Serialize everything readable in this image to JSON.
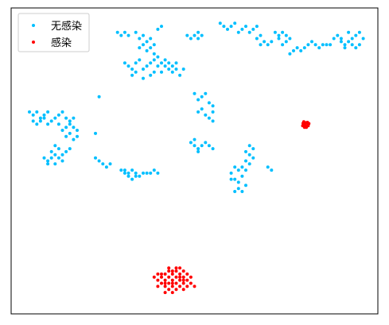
{
  "chart_data": {
    "type": "scatter",
    "title": "",
    "xlabel": "",
    "ylabel": "",
    "xlim": [
      0,
      100
    ],
    "ylim": [
      0,
      100
    ],
    "grid": false,
    "legend": "top-left",
    "series": [
      {
        "name": "无感染",
        "color": "#00bfff",
        "points": [
          [
            29,
            92
          ],
          [
            30,
            91
          ],
          [
            31,
            92
          ],
          [
            32,
            91
          ],
          [
            34,
            92
          ],
          [
            35,
            90
          ],
          [
            36,
            91
          ],
          [
            37,
            89
          ],
          [
            38,
            90
          ],
          [
            39,
            88
          ],
          [
            36,
            88
          ],
          [
            37,
            86
          ],
          [
            38,
            87
          ],
          [
            35,
            87
          ],
          [
            40,
            93
          ],
          [
            41,
            94
          ],
          [
            39,
            85
          ],
          [
            31,
            82
          ],
          [
            32,
            81
          ],
          [
            33,
            80
          ],
          [
            34,
            82
          ],
          [
            35,
            83
          ],
          [
            36,
            80
          ],
          [
            37,
            81
          ],
          [
            38,
            82
          ],
          [
            39,
            83
          ],
          [
            40,
            81
          ],
          [
            41,
            82
          ],
          [
            42,
            81
          ],
          [
            43,
            80
          ],
          [
            44,
            81
          ],
          [
            45,
            80
          ],
          [
            46,
            78
          ],
          [
            44,
            79
          ],
          [
            42,
            83
          ],
          [
            40,
            84
          ],
          [
            34,
            79
          ],
          [
            33,
            78
          ],
          [
            36,
            77
          ],
          [
            38,
            78
          ],
          [
            41,
            79
          ],
          [
            43,
            82
          ],
          [
            45,
            82
          ],
          [
            47,
            80
          ],
          [
            39,
            79
          ],
          [
            48,
            91
          ],
          [
            49,
            90
          ],
          [
            50,
            91
          ],
          [
            51,
            92
          ],
          [
            52,
            91
          ],
          [
            51,
            90
          ],
          [
            57,
            95
          ],
          [
            58,
            94
          ],
          [
            59,
            93
          ],
          [
            60,
            94
          ],
          [
            61,
            95
          ],
          [
            62,
            92
          ],
          [
            63,
            93
          ],
          [
            64,
            94
          ],
          [
            65,
            92
          ],
          [
            66,
            93
          ],
          [
            67,
            94
          ],
          [
            68,
            91
          ],
          [
            69,
            89
          ],
          [
            70,
            88
          ],
          [
            71,
            89
          ],
          [
            68,
            88
          ],
          [
            67,
            90
          ],
          [
            72,
            92
          ],
          [
            73,
            91
          ],
          [
            74,
            92
          ],
          [
            75,
            91
          ],
          [
            75,
            89
          ],
          [
            74,
            88
          ],
          [
            73,
            90
          ],
          [
            76,
            90
          ],
          [
            76,
            85
          ],
          [
            77,
            86
          ],
          [
            78,
            87
          ],
          [
            79,
            86
          ],
          [
            80,
            87
          ],
          [
            81,
            88
          ],
          [
            82,
            89
          ],
          [
            83,
            88
          ],
          [
            84,
            87
          ],
          [
            85,
            88
          ],
          [
            86,
            88
          ],
          [
            87,
            88
          ],
          [
            88,
            90
          ],
          [
            89,
            91
          ],
          [
            90,
            89
          ],
          [
            91,
            88
          ],
          [
            92,
            89
          ],
          [
            93,
            90
          ],
          [
            94,
            91
          ],
          [
            95,
            92
          ],
          [
            96,
            90
          ],
          [
            95,
            88
          ],
          [
            94,
            87
          ],
          [
            93,
            88
          ],
          [
            91,
            87
          ],
          [
            90,
            90
          ],
          [
            92,
            92
          ],
          [
            5,
            66
          ],
          [
            6,
            65
          ],
          [
            7,
            66
          ],
          [
            8,
            64
          ],
          [
            9,
            65
          ],
          [
            10,
            66
          ],
          [
            6,
            63
          ],
          [
            7,
            62
          ],
          [
            8,
            63
          ],
          [
            9,
            64
          ],
          [
            10,
            62
          ],
          [
            11,
            63
          ],
          [
            12,
            64
          ],
          [
            13,
            65
          ],
          [
            14,
            66
          ],
          [
            15,
            64
          ],
          [
            14,
            60
          ],
          [
            15,
            61
          ],
          [
            16,
            62
          ],
          [
            17,
            61
          ],
          [
            18,
            60
          ],
          [
            16,
            59
          ],
          [
            15,
            58
          ],
          [
            17,
            57
          ],
          [
            18,
            58
          ],
          [
            16,
            63
          ],
          [
            17,
            64
          ],
          [
            13,
            62
          ],
          [
            9,
            51
          ],
          [
            10,
            50
          ],
          [
            11,
            51
          ],
          [
            12,
            52
          ],
          [
            13,
            51
          ],
          [
            14,
            52
          ],
          [
            15,
            53
          ],
          [
            10,
            49
          ],
          [
            12,
            49
          ],
          [
            14,
            50
          ],
          [
            13,
            54
          ],
          [
            12,
            55
          ],
          [
            16,
            54
          ],
          [
            11,
            53
          ],
          [
            24,
            71
          ],
          [
            23,
            59
          ],
          [
            51,
            70
          ],
          [
            52,
            71
          ],
          [
            53,
            72
          ],
          [
            54,
            69
          ],
          [
            55,
            68
          ],
          [
            55,
            66
          ],
          [
            54,
            64
          ],
          [
            55,
            63
          ],
          [
            53,
            65
          ],
          [
            52,
            67
          ],
          [
            50,
            72
          ],
          [
            51,
            66
          ],
          [
            49,
            56
          ],
          [
            50,
            55
          ],
          [
            51,
            54
          ],
          [
            52,
            55
          ],
          [
            53,
            56
          ],
          [
            50,
            57
          ],
          [
            51,
            53
          ],
          [
            54,
            55
          ],
          [
            55,
            54
          ],
          [
            23,
            51
          ],
          [
            24,
            50
          ],
          [
            25,
            49
          ],
          [
            26,
            48
          ],
          [
            27,
            49
          ],
          [
            30,
            47
          ],
          [
            31,
            46
          ],
          [
            32,
            46
          ],
          [
            33,
            47
          ],
          [
            34,
            46
          ],
          [
            35,
            45
          ],
          [
            36,
            46
          ],
          [
            37,
            46
          ],
          [
            38,
            46
          ],
          [
            39,
            47
          ],
          [
            40,
            46
          ],
          [
            32,
            45
          ],
          [
            33,
            44
          ],
          [
            34,
            45
          ],
          [
            31,
            47
          ],
          [
            65,
            55
          ],
          [
            66,
            54
          ],
          [
            65,
            52
          ],
          [
            64,
            50
          ],
          [
            63,
            48
          ],
          [
            62,
            47
          ],
          [
            61,
            48
          ],
          [
            60,
            46
          ],
          [
            61,
            44
          ],
          [
            62,
            43
          ],
          [
            63,
            45
          ],
          [
            64,
            47
          ],
          [
            62,
            41
          ],
          [
            63,
            40
          ],
          [
            60,
            44
          ],
          [
            65,
            49
          ],
          [
            66,
            51
          ],
          [
            64,
            42
          ],
          [
            61,
            40
          ],
          [
            70,
            48
          ],
          [
            71,
            47
          ],
          [
            64,
            53
          ]
        ]
      },
      {
        "name": "感染",
        "color": "#ff0000",
        "points": [
          [
            80,
            62
          ],
          [
            80.5,
            62.5
          ],
          [
            81,
            62
          ],
          [
            79.5,
            61.5
          ],
          [
            80,
            61
          ],
          [
            81,
            61.5
          ],
          [
            80.5,
            61
          ],
          [
            79.8,
            62.8
          ],
          [
            80.8,
            62.6
          ],
          [
            81.2,
            62.2
          ],
          [
            79.6,
            62.3
          ],
          [
            80.2,
            61.6
          ],
          [
            39,
            12
          ],
          [
            40,
            11
          ],
          [
            41,
            12
          ],
          [
            42,
            13
          ],
          [
            43,
            12
          ],
          [
            44,
            11
          ],
          [
            45,
            12
          ],
          [
            46,
            11
          ],
          [
            47,
            10
          ],
          [
            48,
            11
          ],
          [
            49,
            12
          ],
          [
            48,
            13
          ],
          [
            47,
            14
          ],
          [
            46,
            13
          ],
          [
            45,
            14
          ],
          [
            44,
            13
          ],
          [
            43,
            14
          ],
          [
            42,
            11
          ],
          [
            41,
            10
          ],
          [
            40,
            9
          ],
          [
            42,
            9
          ],
          [
            43,
            8
          ],
          [
            44,
            9
          ],
          [
            45,
            8
          ],
          [
            46,
            9
          ],
          [
            47,
            8
          ],
          [
            44,
            7
          ],
          [
            42,
            7
          ],
          [
            45,
            10
          ],
          [
            43,
            10
          ],
          [
            46,
            12
          ],
          [
            48,
            9
          ],
          [
            49,
            10
          ],
          [
            41,
            13
          ],
          [
            40,
            13
          ],
          [
            44,
            14
          ],
          [
            46,
            15
          ],
          [
            45,
            15
          ],
          [
            43,
            15
          ],
          [
            47,
            12
          ],
          [
            50,
            9
          ],
          [
            42,
            10
          ],
          [
            44,
            10
          ],
          [
            47,
            11
          ]
        ]
      }
    ]
  }
}
